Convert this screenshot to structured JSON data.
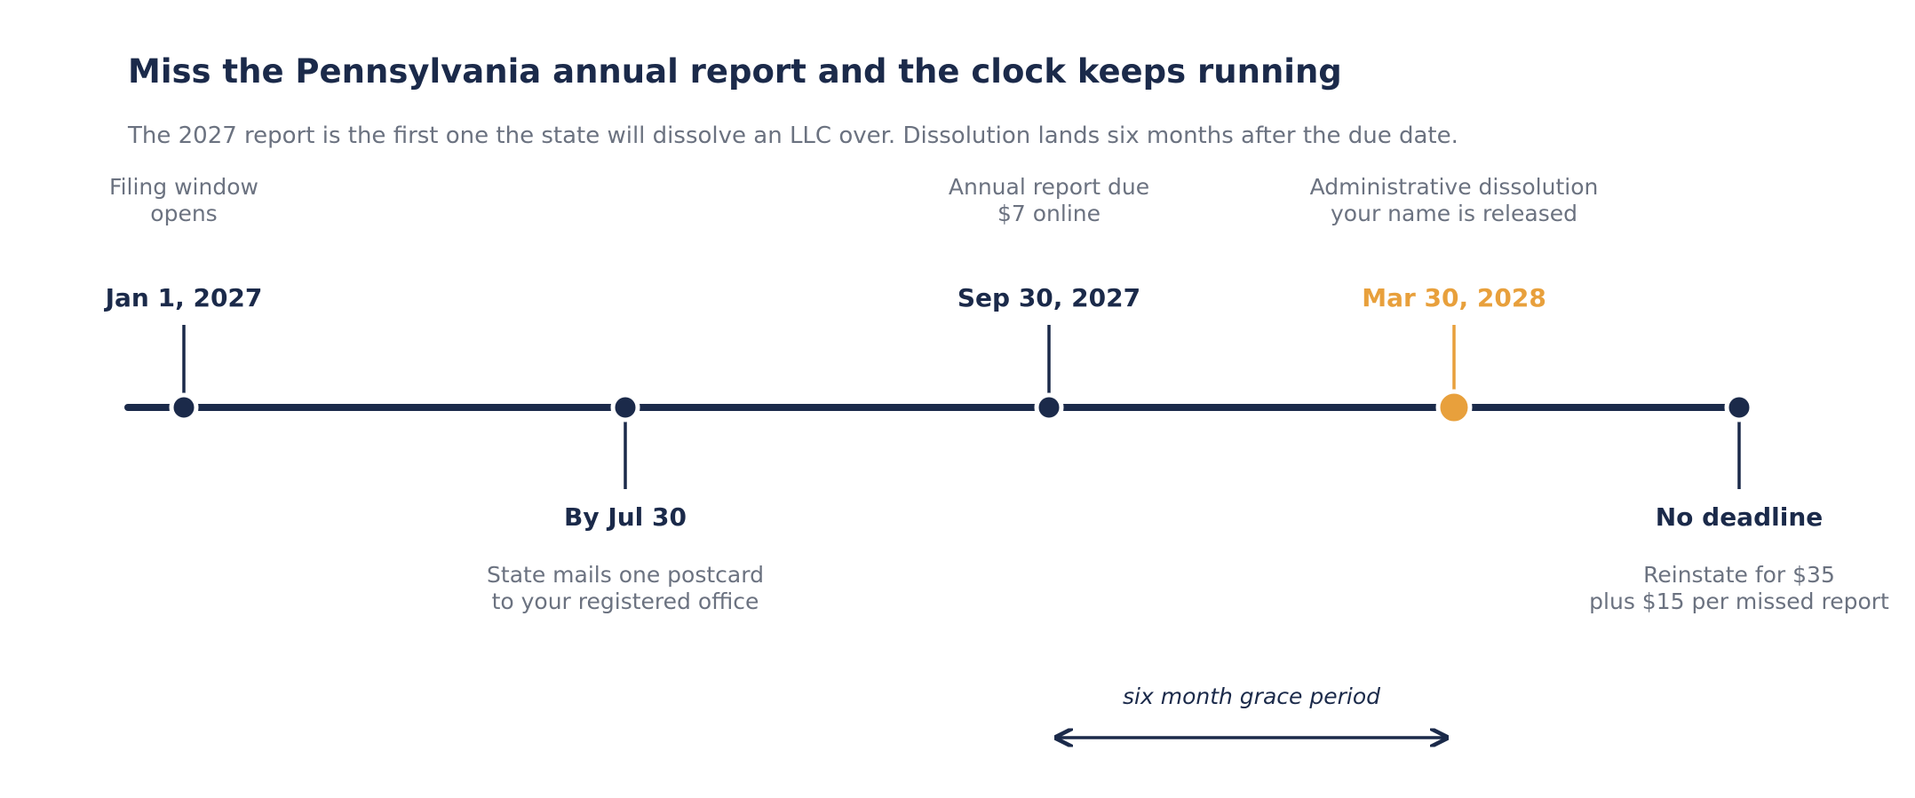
{
  "header": {
    "title": "Miss the Pennsylvania annual report and the clock keeps running",
    "subtitle": "The 2027 report is the first one the state will dissolve an LLC over. Dissolution lands six months after the due date."
  },
  "colors": {
    "primary": "#1b2a4a",
    "accent": "#e8a03c",
    "muted": "#6b7280"
  },
  "milestones": [
    {
      "date": "Jan 1, 2027",
      "desc_line1": "Filing window",
      "desc_line2": "opens",
      "side": "above",
      "highlight": false
    },
    {
      "date": "By Jul 30",
      "desc_line1": "State mails one postcard",
      "desc_line2": "to your registered office",
      "side": "below",
      "highlight": false
    },
    {
      "date": "Sep 30, 2027",
      "desc_line1": "Annual report due",
      "desc_line2": "$7 online",
      "side": "above",
      "highlight": false
    },
    {
      "date": "Mar 30, 2028",
      "desc_line1": "Administrative dissolution",
      "desc_line2": "your name is released",
      "side": "above",
      "highlight": true
    },
    {
      "date": "No deadline",
      "desc_line1": "Reinstate for $35",
      "desc_line2": "plus $15 per missed report",
      "side": "below",
      "highlight": false
    }
  ],
  "grace_period": {
    "label": "six month grace period"
  }
}
